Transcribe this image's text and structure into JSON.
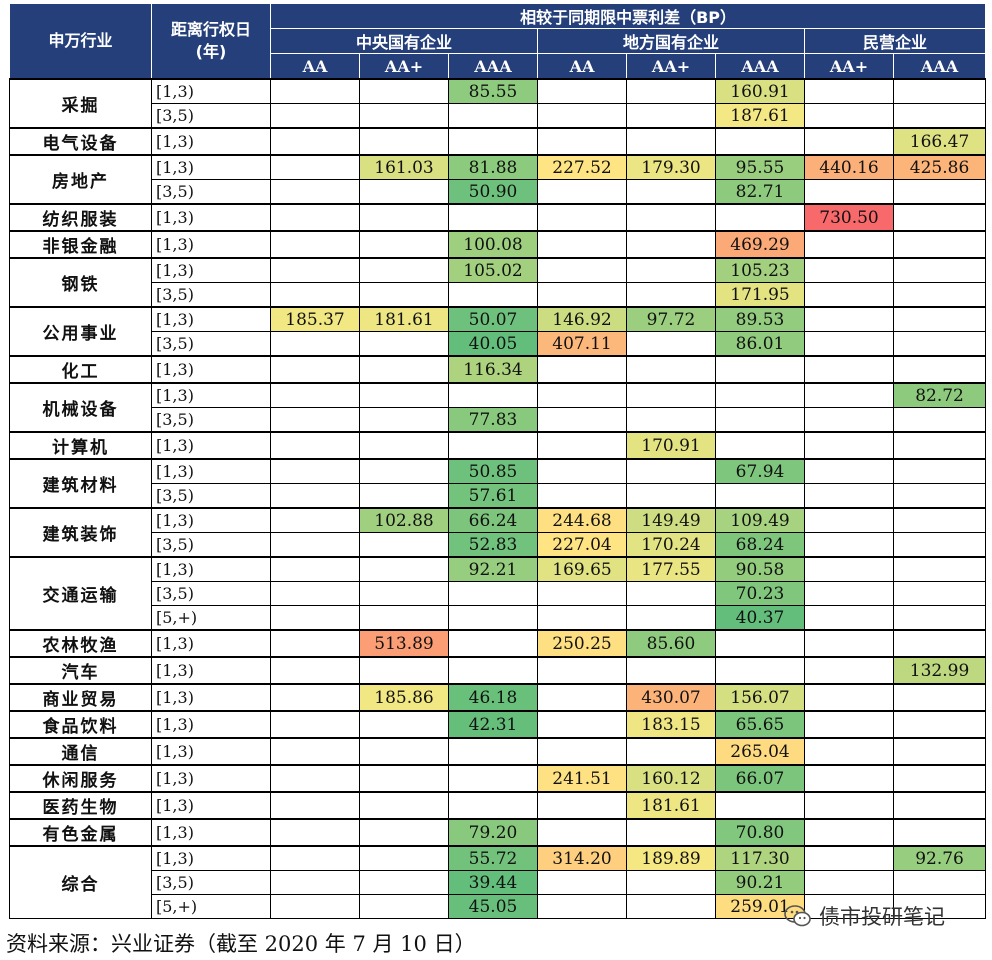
{
  "header": {
    "industry": "申万行业",
    "term": "距离行权日\n(年)",
    "spread_title": "相较于同期限中票利差（BP）",
    "groups": [
      {
        "name": "中央国有企业",
        "grades": [
          "AA",
          "AA+",
          "AAA"
        ]
      },
      {
        "name": "地方国有企业",
        "grades": [
          "AA",
          "AA+",
          "AAA"
        ]
      },
      {
        "name": "民营企业",
        "grades": [
          "AA+",
          "AAA"
        ]
      }
    ]
  },
  "color_scale": {
    "low": "#63be7b",
    "mid": "#ffeb84",
    "high": "#f8696b",
    "range_bp": [
      40,
      730
    ]
  },
  "rows": [
    {
      "industry": "采掘",
      "term": "[1,3)",
      "values": [
        null,
        null,
        85.55,
        null,
        null,
        160.91,
        null,
        null
      ]
    },
    {
      "industry": "采掘",
      "term": "[3,5)",
      "values": [
        null,
        null,
        null,
        null,
        null,
        187.61,
        null,
        null
      ]
    },
    {
      "industry": "电气设备",
      "term": "[1,3)",
      "values": [
        null,
        null,
        null,
        null,
        null,
        null,
        null,
        166.47
      ]
    },
    {
      "industry": "房地产",
      "term": "[1,3)",
      "values": [
        null,
        161.03,
        81.88,
        227.52,
        179.3,
        95.55,
        440.16,
        425.86
      ]
    },
    {
      "industry": "房地产",
      "term": "[3,5)",
      "values": [
        null,
        null,
        50.9,
        null,
        null,
        82.71,
        null,
        null
      ]
    },
    {
      "industry": "纺织服装",
      "term": "[1,3)",
      "values": [
        null,
        null,
        null,
        null,
        null,
        null,
        730.5,
        null
      ]
    },
    {
      "industry": "非银金融",
      "term": "[1,3)",
      "values": [
        null,
        null,
        100.08,
        null,
        null,
        469.29,
        null,
        null
      ]
    },
    {
      "industry": "钢铁",
      "term": "[1,3)",
      "values": [
        null,
        null,
        105.02,
        null,
        null,
        105.23,
        null,
        null
      ]
    },
    {
      "industry": "钢铁",
      "term": "[3,5)",
      "values": [
        null,
        null,
        null,
        null,
        null,
        171.95,
        null,
        null
      ]
    },
    {
      "industry": "公用事业",
      "term": "[1,3)",
      "values": [
        185.37,
        181.61,
        50.07,
        146.92,
        97.72,
        89.53,
        null,
        null
      ]
    },
    {
      "industry": "公用事业",
      "term": "[3,5)",
      "values": [
        null,
        null,
        40.05,
        407.11,
        null,
        86.01,
        null,
        null
      ]
    },
    {
      "industry": "化工",
      "term": "[1,3)",
      "values": [
        null,
        null,
        116.34,
        null,
        null,
        null,
        null,
        null
      ]
    },
    {
      "industry": "机械设备",
      "term": "[1,3)",
      "values": [
        null,
        null,
        null,
        null,
        null,
        null,
        null,
        82.72
      ]
    },
    {
      "industry": "机械设备",
      "term": "[3,5)",
      "values": [
        null,
        null,
        77.83,
        null,
        null,
        null,
        null,
        null
      ]
    },
    {
      "industry": "计算机",
      "term": "[1,3)",
      "values": [
        null,
        null,
        null,
        null,
        170.91,
        null,
        null,
        null
      ]
    },
    {
      "industry": "建筑材料",
      "term": "[1,3)",
      "values": [
        null,
        null,
        50.85,
        null,
        null,
        67.94,
        null,
        null
      ]
    },
    {
      "industry": "建筑材料",
      "term": "[3,5)",
      "values": [
        null,
        null,
        57.61,
        null,
        null,
        null,
        null,
        null
      ]
    },
    {
      "industry": "建筑装饰",
      "term": "[1,3)",
      "values": [
        null,
        102.88,
        66.24,
        244.68,
        149.49,
        109.49,
        null,
        null
      ]
    },
    {
      "industry": "建筑装饰",
      "term": "[3,5)",
      "values": [
        null,
        null,
        52.83,
        227.04,
        170.24,
        68.24,
        null,
        null
      ]
    },
    {
      "industry": "交通运输",
      "term": "[1,3)",
      "values": [
        null,
        null,
        92.21,
        169.65,
        177.55,
        90.58,
        null,
        null
      ]
    },
    {
      "industry": "交通运输",
      "term": "[3,5)",
      "values": [
        null,
        null,
        null,
        null,
        null,
        70.23,
        null,
        null
      ]
    },
    {
      "industry": "交通运输",
      "term": "[5,+)",
      "values": [
        null,
        null,
        null,
        null,
        null,
        40.37,
        null,
        null
      ]
    },
    {
      "industry": "农林牧渔",
      "term": "[1,3)",
      "values": [
        null,
        513.89,
        null,
        250.25,
        85.6,
        null,
        null,
        null
      ]
    },
    {
      "industry": "汽车",
      "term": "[1,3)",
      "values": [
        null,
        null,
        null,
        null,
        null,
        null,
        null,
        132.99
      ]
    },
    {
      "industry": "商业贸易",
      "term": "[1,3)",
      "values": [
        null,
        185.86,
        46.18,
        null,
        430.07,
        156.07,
        null,
        null
      ]
    },
    {
      "industry": "食品饮料",
      "term": "[1,3)",
      "values": [
        null,
        null,
        42.31,
        null,
        183.15,
        65.65,
        null,
        null
      ]
    },
    {
      "industry": "通信",
      "term": "[1,3)",
      "values": [
        null,
        null,
        null,
        null,
        null,
        265.04,
        null,
        null
      ]
    },
    {
      "industry": "休闲服务",
      "term": "[1,3)",
      "values": [
        null,
        null,
        null,
        241.51,
        160.12,
        66.07,
        null,
        null
      ]
    },
    {
      "industry": "医药生物",
      "term": "[1,3)",
      "values": [
        null,
        null,
        null,
        null,
        181.61,
        null,
        null,
        null
      ]
    },
    {
      "industry": "有色金属",
      "term": "[1,3)",
      "values": [
        null,
        null,
        79.2,
        null,
        null,
        70.8,
        null,
        null
      ]
    },
    {
      "industry": "综合",
      "term": "[1,3)",
      "values": [
        null,
        null,
        55.72,
        314.2,
        189.89,
        117.3,
        null,
        92.76
      ]
    },
    {
      "industry": "综合",
      "term": "[3,5)",
      "values": [
        null,
        null,
        39.44,
        null,
        null,
        90.21,
        null,
        null
      ]
    },
    {
      "industry": "综合",
      "term": "[5,+)",
      "values": [
        null,
        null,
        45.05,
        null,
        null,
        259.01,
        null,
        null
      ]
    }
  ],
  "footer": {
    "source": "资料来源：兴业证券（截至 2020 年 7 月 10 日）"
  },
  "watermark": {
    "icon": "wechat-icon",
    "text": "债市投研笔记"
  }
}
